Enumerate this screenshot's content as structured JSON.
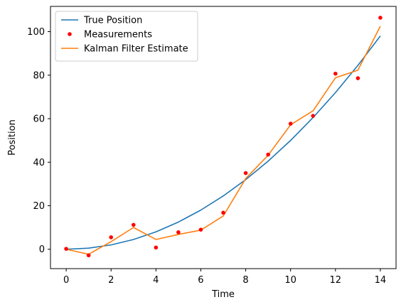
{
  "chart_data": {
    "type": "line",
    "xlabel": "Time",
    "ylabel": "Position",
    "xlim": [
      -0.7,
      14.7
    ],
    "ylim": [
      -8.9,
      111.6
    ],
    "xticks": [
      0,
      2,
      4,
      6,
      8,
      10,
      12,
      14
    ],
    "yticks": [
      0,
      20,
      40,
      60,
      80,
      100
    ],
    "grid": false,
    "legend_position": "upper left",
    "x": [
      0,
      1,
      2,
      3,
      4,
      5,
      6,
      7,
      8,
      9,
      10,
      11,
      12,
      13,
      14
    ],
    "series": [
      {
        "name": "True Position",
        "kind": "line",
        "color": "#1f77b4",
        "values": [
          0,
          0.5,
          2,
          4.5,
          8,
          12.5,
          18,
          24.5,
          32,
          40.5,
          50,
          60.5,
          72,
          84.5,
          98
        ]
      },
      {
        "name": "Measurements",
        "kind": "scatter",
        "color": "#ff0000",
        "values": [
          0.2,
          -2.8,
          5.5,
          11.2,
          0.8,
          7.8,
          9.0,
          16.8,
          35.0,
          43.5,
          57.7,
          61.3,
          80.7,
          78.6,
          106.4
        ]
      },
      {
        "name": "Kalman Filter Estimate",
        "kind": "line",
        "color": "#ff7f0e",
        "values": [
          0,
          -2.3,
          3.5,
          10,
          4.5,
          6.8,
          8.8,
          15.3,
          32.5,
          43.2,
          57.2,
          63.6,
          78.8,
          82.3,
          102.5
        ]
      }
    ]
  }
}
